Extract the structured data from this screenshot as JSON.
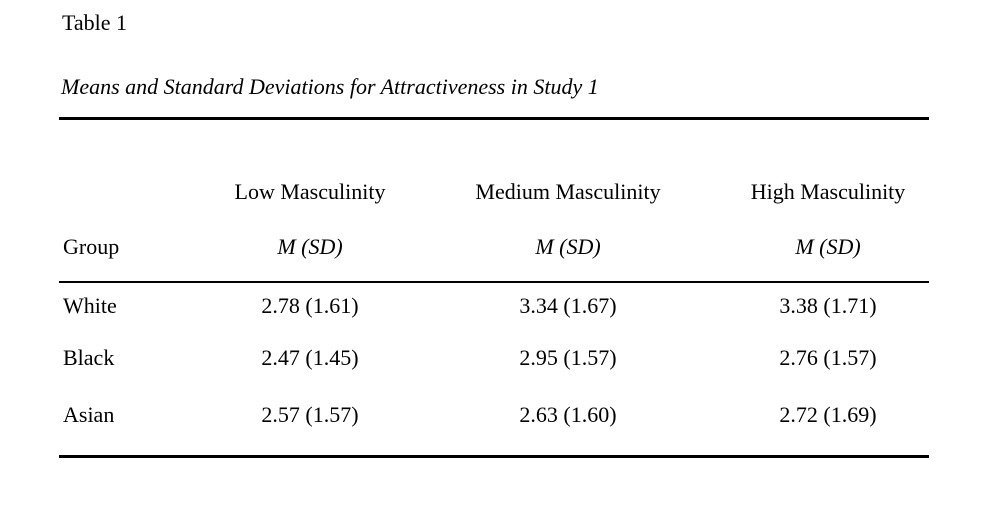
{
  "page": {
    "background_color": "#ffffff",
    "text_color": "#000000"
  },
  "table_label": "Table 1",
  "table_caption": "Means and Standard Deviations for Attractiveness in Study 1",
  "table": {
    "group_header": "Group",
    "columns": [
      {
        "label": "Low Masculinity",
        "sub": "M (SD)"
      },
      {
        "label": "Medium Masculinity",
        "sub": "M (SD)"
      },
      {
        "label": "High Masculinity",
        "sub": "M (SD)"
      }
    ],
    "rows": [
      {
        "group": "White",
        "values": [
          "2.78 (1.61)",
          "3.34 (1.67)",
          "3.38 (1.71)"
        ]
      },
      {
        "group": "Black",
        "values": [
          "2.47 (1.45)",
          "2.95 (1.57)",
          "2.76 (1.57)"
        ]
      },
      {
        "group": "Asian",
        "values": [
          "2.57 (1.57)",
          "2.63 (1.60)",
          "2.72 (1.69)"
        ]
      }
    ]
  },
  "chart_data": {
    "type": "table",
    "title": "Means and Standard Deviations for Attractiveness in Study 1",
    "row_header": "Group",
    "columns": [
      "Low Masculinity",
      "Medium Masculinity",
      "High Masculinity"
    ],
    "cell_format": "M (SD)",
    "rows": [
      {
        "group": "White",
        "cells": [
          {
            "M": 2.78,
            "SD": 1.61
          },
          {
            "M": 3.34,
            "SD": 1.67
          },
          {
            "M": 3.38,
            "SD": 1.71
          }
        ]
      },
      {
        "group": "Black",
        "cells": [
          {
            "M": 2.47,
            "SD": 1.45
          },
          {
            "M": 2.95,
            "SD": 1.57
          },
          {
            "M": 2.76,
            "SD": 1.57
          }
        ]
      },
      {
        "group": "Asian",
        "cells": [
          {
            "M": 2.57,
            "SD": 1.57
          },
          {
            "M": 2.63,
            "SD": 1.6
          },
          {
            "M": 2.72,
            "SD": 1.69
          }
        ]
      }
    ]
  }
}
